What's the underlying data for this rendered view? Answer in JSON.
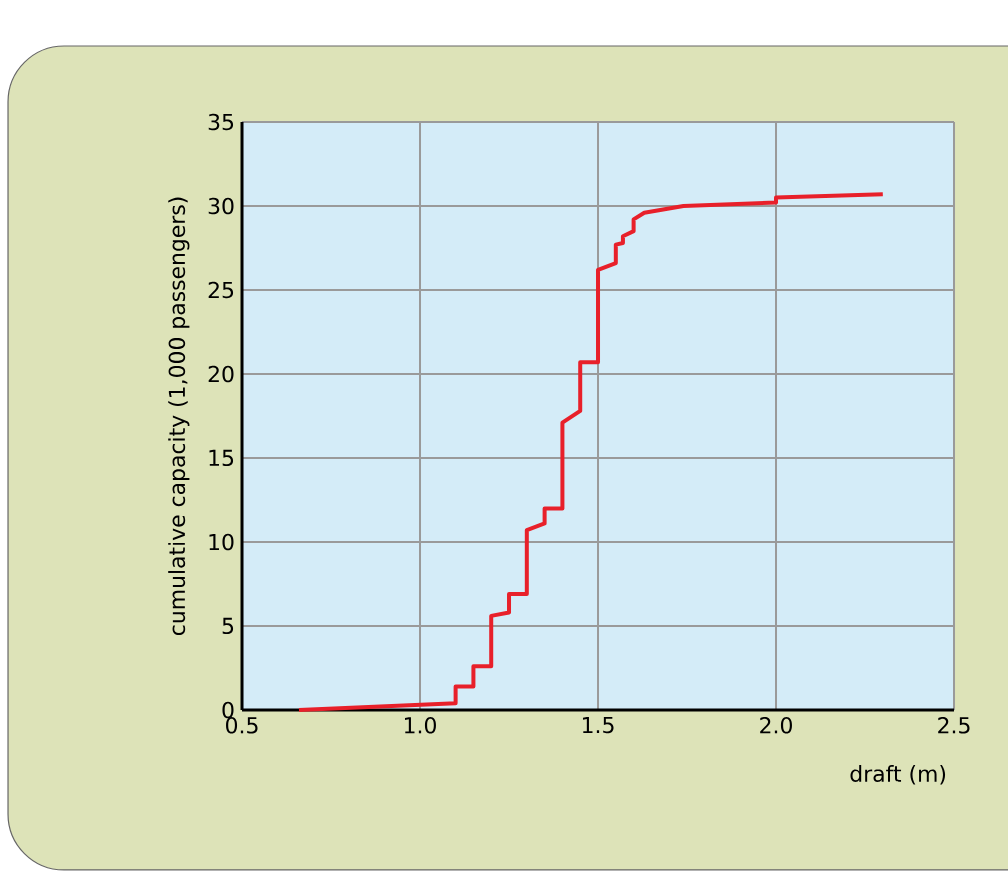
{
  "chart_data": {
    "type": "line",
    "xlabel": "draft (m)",
    "ylabel": "cumulative capacity (1,000 passengers)",
    "x": [
      0.66,
      1.1,
      1.1,
      1.15,
      1.15,
      1.2,
      1.2,
      1.25,
      1.25,
      1.3,
      1.3,
      1.35,
      1.35,
      1.4,
      1.4,
      1.45,
      1.45,
      1.5,
      1.5,
      1.55,
      1.55,
      1.57,
      1.57,
      1.6,
      1.6,
      1.63,
      1.74,
      2.0,
      2.0,
      2.3
    ],
    "series": [
      {
        "color": "#e8202a",
        "values": [
          0,
          0.4,
          1.4,
          1.4,
          2.6,
          2.6,
          5.6,
          5.8,
          6.9,
          6.9,
          10.7,
          11.1,
          12.0,
          12.0,
          17.1,
          17.8,
          20.7,
          20.7,
          26.2,
          26.6,
          27.7,
          27.8,
          28.2,
          28.5,
          29.2,
          29.6,
          30.0,
          30.2,
          30.5,
          30.7
        ]
      }
    ],
    "xlim": [
      0.5,
      2.5
    ],
    "ylim": [
      0,
      35
    ],
    "xticks": [
      {
        "value": 0.5,
        "label": "0.5"
      },
      {
        "value": 1.0,
        "label": "1.0"
      },
      {
        "value": 1.5,
        "label": "1.5"
      },
      {
        "value": 2.0,
        "label": "2.0"
      },
      {
        "value": 2.5,
        "label": "2.5"
      }
    ],
    "yticks": [
      0,
      5,
      10,
      15,
      20,
      25,
      30,
      35
    ],
    "grid": true,
    "marker": "none",
    "line_style": "solid"
  }
}
